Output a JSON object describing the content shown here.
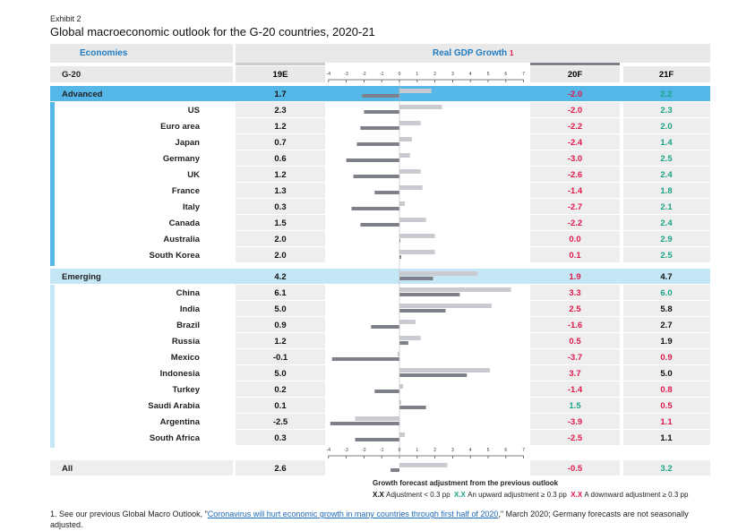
{
  "exhibit": "Exhibit 2",
  "title": "Global macroeconomic outlook for the G-20 countries, 2020-21",
  "header": {
    "economies": "Economies",
    "gdp_growth": "Real GDP Growth",
    "gdp_footnote_mark": "1",
    "g20": "G-20",
    "col_19e": "19E",
    "col_20f": "20F",
    "col_21f": "21F"
  },
  "colors": {
    "pos": "#1aa486",
    "neg": "#e0194b",
    "blk": "#111111",
    "bar_light": "#c9cbd0",
    "bar_dark": "#7d8088",
    "advanced_band": "#55b6e8",
    "emerging_band": "#c5e6f5"
  },
  "chart_data": {
    "type": "bar",
    "title": "Real GDP Growth",
    "xlabel": "Growth forecast adjustment from the previous outlook",
    "x_ticks": [
      "-4",
      "-3",
      "-2",
      "-1",
      "0",
      "1",
      "2",
      "3",
      "4",
      "5",
      "6",
      "7"
    ],
    "xlim": [
      -4,
      7
    ],
    "series": [
      {
        "name": "Adjustment 20F"
      },
      {
        "name": "Adjustment 21F"
      }
    ],
    "rows": [
      {
        "name": "Advanced",
        "group": "advanced",
        "e19": "1.7",
        "f20": "-2.0",
        "f21": "2.2",
        "c20": "neg",
        "c21": "pos",
        "adj20": 1.8,
        "adj21": -2.1
      },
      {
        "name": "US",
        "group": "adv",
        "e19": "2.3",
        "f20": "-2.0",
        "f21": "2.3",
        "c20": "neg",
        "c21": "pos",
        "adj20": 2.4,
        "adj21": -2.0
      },
      {
        "name": "Euro area",
        "group": "adv",
        "e19": "1.2",
        "f20": "-2.2",
        "f21": "2.0",
        "c20": "neg",
        "c21": "pos",
        "adj20": 1.2,
        "adj21": -2.2
      },
      {
        "name": "Japan",
        "group": "adv",
        "e19": "0.7",
        "f20": "-2.4",
        "f21": "1.4",
        "c20": "neg",
        "c21": "pos",
        "adj20": 0.7,
        "adj21": -2.4
      },
      {
        "name": "Germany",
        "group": "adv",
        "e19": "0.6",
        "f20": "-3.0",
        "f21": "2.5",
        "c20": "neg",
        "c21": "pos",
        "adj20": 0.6,
        "adj21": -3.0
      },
      {
        "name": "UK",
        "group": "adv",
        "e19": "1.2",
        "f20": "-2.6",
        "f21": "2.4",
        "c20": "neg",
        "c21": "pos",
        "adj20": 1.2,
        "adj21": -2.6
      },
      {
        "name": "France",
        "group": "adv",
        "e19": "1.3",
        "f20": "-1.4",
        "f21": "1.8",
        "c20": "neg",
        "c21": "pos",
        "adj20": 1.3,
        "adj21": -1.4
      },
      {
        "name": "Italy",
        "group": "adv",
        "e19": "0.3",
        "f20": "-2.7",
        "f21": "2.1",
        "c20": "neg",
        "c21": "pos",
        "adj20": 0.3,
        "adj21": -2.7
      },
      {
        "name": "Canada",
        "group": "adv",
        "e19": "1.5",
        "f20": "-2.2",
        "f21": "2.4",
        "c20": "neg",
        "c21": "pos",
        "adj20": 1.5,
        "adj21": -2.2
      },
      {
        "name": "Australia",
        "group": "adv",
        "e19": "2.0",
        "f20": "0.0",
        "f21": "2.9",
        "c20": "neg",
        "c21": "pos",
        "adj20": 2.0,
        "adj21": 0.0
      },
      {
        "name": "South Korea",
        "group": "adv",
        "e19": "2.0",
        "f20": "0.1",
        "f21": "2.5",
        "c20": "neg",
        "c21": "pos",
        "adj20": 2.0,
        "adj21": 0.1
      },
      {
        "name": "Emerging",
        "group": "emerging",
        "e19": "4.2",
        "f20": "1.9",
        "f21": "4.7",
        "c20": "neg",
        "c21": "blk",
        "adj20": 4.4,
        "adj21": 1.9
      },
      {
        "name": "China",
        "group": "emg",
        "e19": "6.1",
        "f20": "3.3",
        "f21": "6.0",
        "c20": "neg",
        "c21": "pos",
        "adj20": 6.3,
        "adj21": 3.4
      },
      {
        "name": "India",
        "group": "emg",
        "e19": "5.0",
        "f20": "2.5",
        "f21": "5.8",
        "c20": "neg",
        "c21": "blk",
        "adj20": 5.2,
        "adj21": 2.6
      },
      {
        "name": "Brazil",
        "group": "emg",
        "e19": "0.9",
        "f20": "-1.6",
        "f21": "2.7",
        "c20": "neg",
        "c21": "blk",
        "adj20": 0.9,
        "adj21": -1.6
      },
      {
        "name": "Russia",
        "group": "emg",
        "e19": "1.2",
        "f20": "0.5",
        "f21": "1.9",
        "c20": "neg",
        "c21": "blk",
        "adj20": 1.2,
        "adj21": 0.5
      },
      {
        "name": "Mexico",
        "group": "emg",
        "e19": "-0.1",
        "f20": "-3.7",
        "f21": "0.9",
        "c20": "neg",
        "c21": "neg",
        "adj20": -0.1,
        "adj21": -3.8
      },
      {
        "name": "Indonesia",
        "group": "emg",
        "e19": "5.0",
        "f20": "3.7",
        "f21": "5.0",
        "c20": "neg",
        "c21": "blk",
        "adj20": 5.1,
        "adj21": 3.8
      },
      {
        "name": "Turkey",
        "group": "emg",
        "e19": "0.2",
        "f20": "-1.4",
        "f21": "0.8",
        "c20": "neg",
        "c21": "neg",
        "adj20": 0.2,
        "adj21": -1.4
      },
      {
        "name": "Saudi Arabia",
        "group": "emg",
        "e19": "0.1",
        "f20": "1.5",
        "f21": "0.5",
        "c20": "pos",
        "c21": "neg",
        "adj20": 0.1,
        "adj21": 1.5
      },
      {
        "name": "Argentina",
        "group": "emg",
        "e19": "-2.5",
        "f20": "-3.9",
        "f21": "1.1",
        "c20": "neg",
        "c21": "neg",
        "adj20": -2.5,
        "adj21": -3.9
      },
      {
        "name": "South Africa",
        "group": "emg",
        "e19": "0.3",
        "f20": "-2.5",
        "f21": "1.1",
        "c20": "neg",
        "c21": "blk",
        "adj20": 0.3,
        "adj21": -2.5
      },
      {
        "name": "All",
        "group": "all",
        "e19": "2.6",
        "f20": "-0.5",
        "f21": "3.2",
        "c20": "neg",
        "c21": "pos",
        "adj20": 2.7,
        "adj21": -0.5
      }
    ]
  },
  "legend": {
    "caption": "Growth forecast adjustment from the previous outlook",
    "items": [
      {
        "sample": "X.X",
        "label": "Adjustment < 0.3 pp",
        "color": "#111111"
      },
      {
        "sample": "X.X",
        "label": "An upward adjustment ≥ 0.3 pp",
        "color": "#1aa486"
      },
      {
        "sample": "X.X",
        "label": "A downward adjustment ≥ 0.3 pp",
        "color": "#e0194b"
      }
    ]
  },
  "footnote": {
    "prefix": "1. See our previous Global Macro Outlook, \"",
    "link": "Coronavirus will hurt economic growth in many countries through first half of 2020",
    "suffix": ",\" March 2020; Germany forecasts are not seasonally adjusted."
  }
}
